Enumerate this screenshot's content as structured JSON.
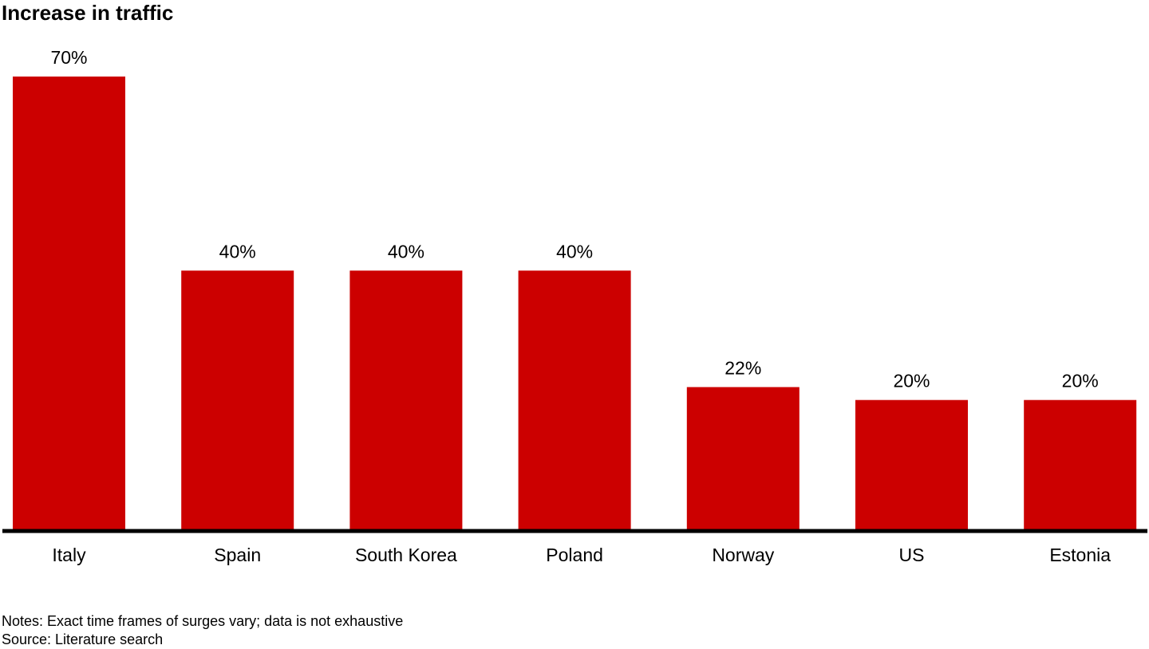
{
  "chart_data": {
    "type": "bar",
    "title": "Increase in traffic",
    "categories": [
      "Italy",
      "Spain",
      "South Korea",
      "Poland",
      "Norway",
      "US",
      "Estonia"
    ],
    "values": [
      70,
      40,
      40,
      40,
      22,
      20,
      20
    ],
    "data_labels": [
      "70%",
      "40%",
      "40%",
      "40%",
      "22%",
      "20%",
      "20%"
    ],
    "unit": "%",
    "ylim": [
      0,
      70
    ],
    "grid": false,
    "legend": "none",
    "bar_color": "#cc0000",
    "axis_color": "#000000"
  },
  "notes": {
    "line1": "Notes: Exact time frames of surges vary; data is not exhaustive",
    "line2": "Source: Literature search"
  }
}
